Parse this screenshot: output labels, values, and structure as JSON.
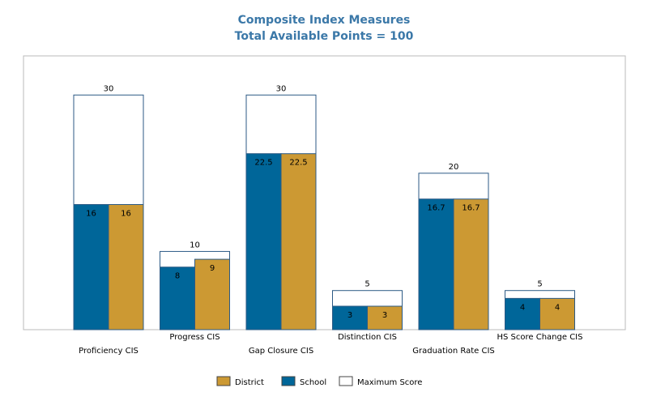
{
  "chart_data": {
    "type": "bar",
    "title": "Composite Index Measures",
    "subtitle": "Total Available Points = 100",
    "categories": [
      "Proficiency CIS",
      "Progress CIS",
      "Gap Closure CIS",
      "Distinction CIS",
      "Graduation Rate CIS",
      "HS Score Change CIS"
    ],
    "series": [
      {
        "name": "School",
        "values": [
          16,
          8,
          22.5,
          3,
          16.7,
          4
        ],
        "color": "#006699"
      },
      {
        "name": "District",
        "values": [
          16,
          9,
          22.5,
          3,
          16.7,
          4
        ],
        "color": "#cc9933"
      },
      {
        "name": "Maximum Score",
        "values": [
          30,
          10,
          30,
          5,
          20,
          5
        ],
        "color": "#ffffff"
      }
    ],
    "ylim": [
      0,
      35
    ],
    "grid": false,
    "legend": {
      "position": "bottom",
      "order": [
        "District",
        "School",
        "Maximum Score"
      ]
    }
  }
}
